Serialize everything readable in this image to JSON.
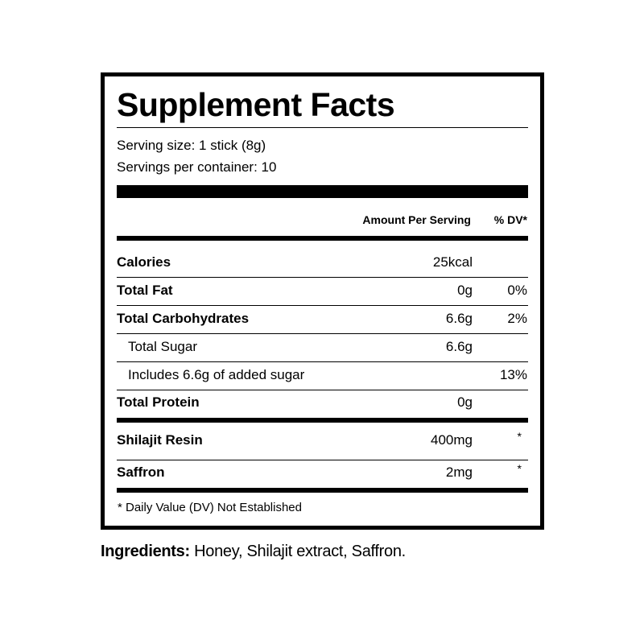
{
  "title": "Supplement Facts",
  "serving_size": "Serving size: 1 stick (8g)",
  "servings_per_container": "Servings per container: 10",
  "header": {
    "amount": "Amount Per Serving",
    "dv": "% DV*"
  },
  "rows": [
    {
      "name": "Calories",
      "amount": "25kcal",
      "dv": ""
    },
    {
      "name": "Total Fat",
      "amount": "0g",
      "dv": "0%"
    },
    {
      "name": "Total Carbohydrates",
      "amount": "6.6g",
      "dv": "2%"
    },
    {
      "name": "Total Sugar",
      "amount": "6.6g",
      "dv": ""
    },
    {
      "name": "Includes 6.6g of added sugar",
      "amount": "",
      "dv": "13%"
    },
    {
      "name": "Total Protein",
      "amount": "0g",
      "dv": ""
    }
  ],
  "ingredients_rows": [
    {
      "name": "Shilajit Resin",
      "amount": "400mg",
      "dv": "*"
    },
    {
      "name": "Saffron",
      "amount": "2mg",
      "dv": "*"
    }
  ],
  "footnote": "* Daily Value (DV) Not Established",
  "ingredients": {
    "label": "Ingredients:",
    "text": " Honey, Shilajit extract, Saffron."
  }
}
